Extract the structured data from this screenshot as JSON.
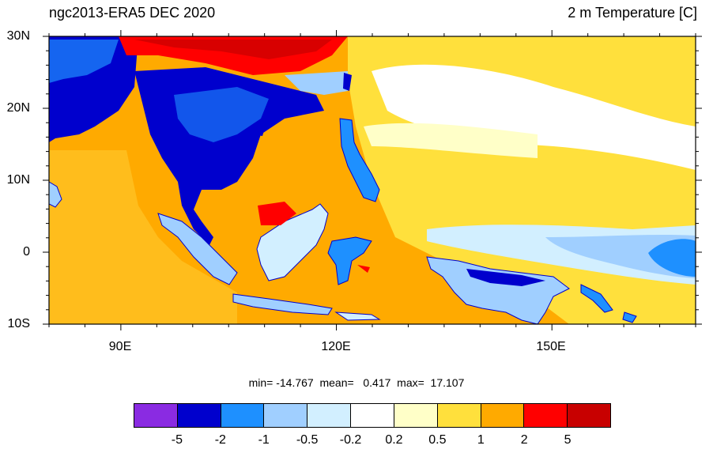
{
  "header": {
    "left_title": "ngc2013-ERA5 DEC 2020",
    "right_title": "2 m Temperature [C]"
  },
  "map": {
    "lat_labels": [
      "30N",
      "20N",
      "10N",
      "0",
      "10S"
    ],
    "lon_labels": [
      "90E",
      "120E",
      "150E"
    ],
    "lon_range": [
      80,
      170
    ],
    "lat_range": [
      -10,
      30
    ]
  },
  "stats": {
    "text": "min= -14.767  mean=   0.417  max=  17.107"
  },
  "colorbar": {
    "colors": [
      "#8a2be2",
      "#0000cd",
      "#1e90ff",
      "#a0cfff",
      "#d2efff",
      "#ffffff",
      "#ffffc8",
      "#ffe03c",
      "#ffaa00",
      "#ff0000",
      "#c80000"
    ],
    "labels": [
      "-5",
      "-2",
      "-1",
      "-0.5",
      "-0.2",
      "0.2",
      "0.5",
      "1",
      "2",
      "5"
    ]
  }
}
